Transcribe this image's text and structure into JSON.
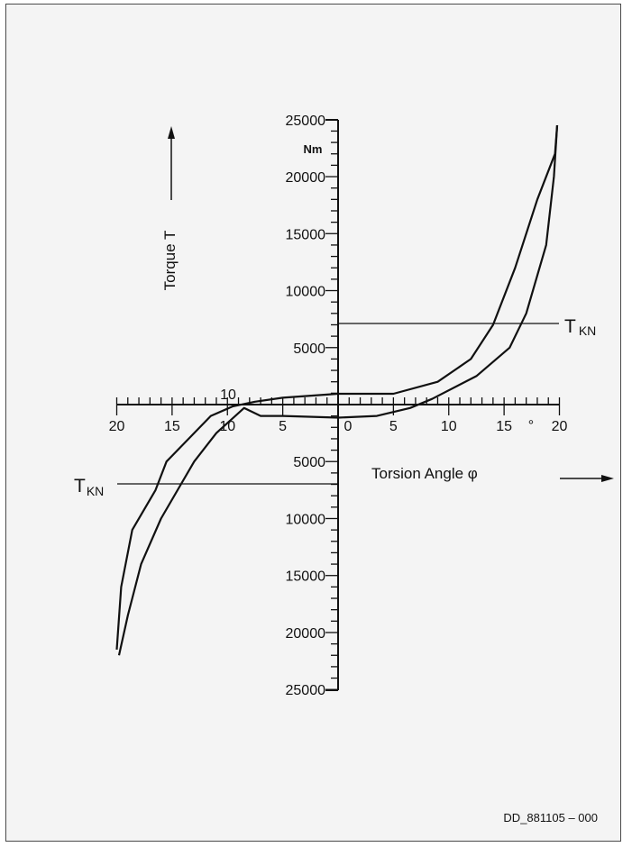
{
  "chart_data": {
    "type": "line",
    "title": "",
    "y_axis": {
      "label": "Torque T",
      "unit": "Nm",
      "tick_values": [
        25000,
        20000,
        15000,
        10000,
        5000
      ],
      "range": [
        -25000,
        25000
      ],
      "orientation": "vertical through origin, values labeled on both halves"
    },
    "x_axis": {
      "label": "Torsion Angle φ",
      "unit": "°",
      "positive_ticks": [
        "0",
        "5",
        "10",
        "15",
        "20"
      ],
      "negative_ticks": [
        "5",
        "10",
        "15",
        "20"
      ],
      "range": [
        -20,
        20
      ],
      "annotation_10": "10"
    },
    "hysteresis_curve": {
      "upper_branch": [
        {
          "x": -20,
          "y": -21500
        },
        {
          "x": -19.6,
          "y": -16000
        },
        {
          "x": -18.6,
          "y": -11000
        },
        {
          "x": -16.5,
          "y": -7500
        },
        {
          "x": -15.5,
          "y": -5000
        },
        {
          "x": -13.5,
          "y": -3000
        },
        {
          "x": -11.5,
          "y": -1000
        },
        {
          "x": -9.5,
          "y": -150
        },
        {
          "x": -7.5,
          "y": 250
        },
        {
          "x": -5,
          "y": 600
        },
        {
          "x": 0,
          "y": 950
        },
        {
          "x": 5,
          "y": 950
        },
        {
          "x": 9,
          "y": 2000
        },
        {
          "x": 12,
          "y": 4000
        },
        {
          "x": 14,
          "y": 7000
        },
        {
          "x": 16,
          "y": 12000
        },
        {
          "x": 18,
          "y": 18000
        },
        {
          "x": 19.6,
          "y": 22000
        },
        {
          "x": 19.8,
          "y": 24500
        }
      ],
      "lower_branch": [
        {
          "x": -19.8,
          "y": -22000
        },
        {
          "x": -19,
          "y": -18500
        },
        {
          "x": -17.8,
          "y": -14000
        },
        {
          "x": -16,
          "y": -10000
        },
        {
          "x": -13,
          "y": -5000
        },
        {
          "x": -11,
          "y": -2500
        },
        {
          "x": -8.5,
          "y": -300
        },
        {
          "x": -7,
          "y": -1000
        },
        {
          "x": -5,
          "y": -1000
        },
        {
          "x": 0,
          "y": -1150
        },
        {
          "x": 3.5,
          "y": -1000
        },
        {
          "x": 6.5,
          "y": -300
        },
        {
          "x": 8.5,
          "y": 500
        },
        {
          "x": 12.5,
          "y": 2500
        },
        {
          "x": 15.5,
          "y": 5000
        },
        {
          "x": 17,
          "y": 8000
        },
        {
          "x": 18.8,
          "y": 14000
        },
        {
          "x": 19.5,
          "y": 20000
        },
        {
          "x": 19.8,
          "y": 24500
        }
      ]
    },
    "nominal_torque": {
      "positive": 7000,
      "negative": -7000,
      "label": "T",
      "subscript": "KN"
    }
  },
  "footer": {
    "code": "DD_881105 – 000"
  }
}
